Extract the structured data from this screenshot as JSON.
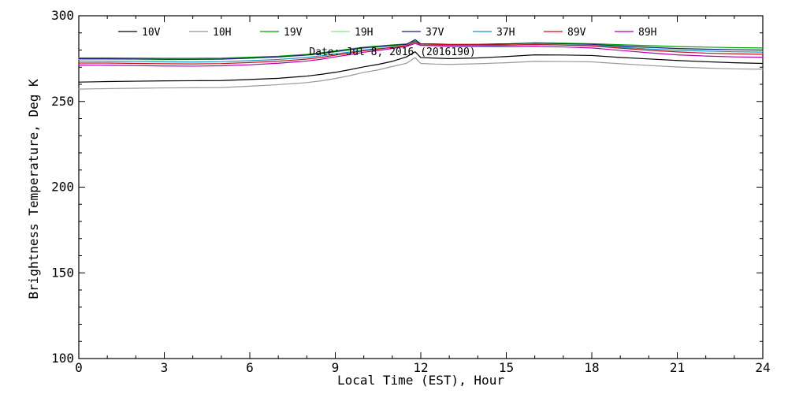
{
  "chart_data": {
    "type": "line",
    "title": "",
    "xlabel": "Local Time (EST), Hour",
    "ylabel": "Brightness Temperature, Deg K",
    "xlim": [
      0,
      24
    ],
    "ylim": [
      100,
      300
    ],
    "xticks": [
      0,
      3,
      6,
      9,
      12,
      15,
      18,
      21,
      24
    ],
    "yticks": [
      100,
      150,
      200,
      250,
      300
    ],
    "grid": false,
    "legend_position": "top",
    "annotation": "Date: Jul  8, 2016  (2016190)",
    "x": [
      0,
      1,
      2,
      3,
      4,
      5,
      6,
      7,
      8,
      8.5,
      9,
      9.5,
      10,
      10.5,
      11,
      11.5,
      11.8,
      12,
      12.5,
      13,
      14,
      15,
      16,
      17,
      18,
      19,
      20,
      21,
      22,
      23,
      24
    ],
    "series": [
      {
        "name": "10V",
        "color": "#000000",
        "values": [
          261.3,
          261.6,
          261.8,
          262.0,
          262.1,
          262.2,
          262.8,
          263.5,
          264.8,
          265.8,
          267.0,
          268.5,
          270.2,
          271.6,
          273.4,
          276.0,
          279.0,
          275.6,
          275.3,
          275.0,
          275.4,
          276.2,
          277.2,
          277.1,
          276.8,
          275.7,
          274.8,
          273.9,
          273.2,
          272.6,
          272.2
        ]
      },
      {
        "name": "10H",
        "color": "#999999",
        "values": [
          257.2,
          257.5,
          257.7,
          257.9,
          258.0,
          258.1,
          258.9,
          259.8,
          261.0,
          262.0,
          263.4,
          265.0,
          267.0,
          268.4,
          270.4,
          272.3,
          275.6,
          272.2,
          271.8,
          271.6,
          272.0,
          272.6,
          273.4,
          273.3,
          273.1,
          272.0,
          271.0,
          270.1,
          269.5,
          269.0,
          268.8
        ]
      },
      {
        "name": "19V",
        "color": "#00a000",
        "values": [
          275.4,
          275.4,
          275.3,
          275.2,
          275.2,
          275.3,
          275.8,
          276.4,
          277.5,
          278.4,
          279.5,
          280.6,
          281.7,
          282.3,
          283.0,
          283.6,
          285.3,
          283.5,
          283.4,
          283.2,
          283.3,
          283.6,
          284.2,
          284.0,
          283.7,
          283.1,
          282.6,
          282.0,
          281.7,
          281.4,
          281.2
        ]
      },
      {
        "name": "19H",
        "color": "#80e880",
        "values": [
          274.6,
          274.6,
          274.4,
          274.3,
          274.4,
          274.6,
          275.2,
          275.8,
          276.9,
          277.7,
          278.8,
          279.9,
          281.0,
          281.6,
          282.2,
          282.9,
          284.6,
          282.8,
          282.6,
          282.4,
          282.4,
          282.7,
          283.2,
          283.1,
          282.7,
          282.0,
          281.4,
          280.8,
          280.4,
          280.1,
          279.9
        ]
      },
      {
        "name": "37V",
        "color": "#1c1c80",
        "values": [
          274.9,
          274.9,
          274.8,
          274.6,
          274.6,
          274.7,
          275.3,
          276.0,
          277.1,
          278.0,
          279.1,
          280.2,
          281.3,
          282.0,
          282.7,
          283.3,
          286.1,
          283.7,
          283.6,
          283.3,
          283.3,
          283.6,
          284.0,
          283.7,
          283.3,
          282.4,
          281.6,
          280.9,
          280.5,
          280.2,
          280.0
        ]
      },
      {
        "name": "37H",
        "color": "#1496c8",
        "values": [
          273.6,
          273.5,
          273.3,
          273.1,
          273.0,
          273.2,
          273.8,
          274.5,
          275.7,
          276.6,
          277.7,
          278.8,
          280.0,
          280.8,
          281.5,
          282.3,
          285.0,
          282.9,
          282.8,
          282.5,
          282.5,
          282.8,
          283.3,
          283.0,
          282.6,
          281.6,
          280.6,
          279.9,
          279.4,
          279.0,
          278.8
        ]
      },
      {
        "name": "89V",
        "color": "#d01010",
        "values": [
          272.4,
          272.4,
          272.2,
          272.0,
          271.9,
          272.1,
          272.7,
          273.5,
          274.7,
          275.7,
          277.0,
          278.2,
          279.6,
          280.5,
          281.6,
          282.6,
          284.7,
          283.5,
          283.3,
          283.1,
          283.1,
          283.0,
          283.2,
          282.9,
          282.4,
          281.1,
          279.9,
          278.9,
          278.2,
          277.8,
          277.6
        ]
      },
      {
        "name": "89H",
        "color": "#b000b0",
        "values": [
          271.2,
          271.1,
          270.9,
          270.7,
          270.6,
          270.8,
          271.4,
          272.3,
          273.6,
          274.6,
          276.0,
          277.3,
          278.7,
          279.7,
          280.9,
          282.1,
          283.8,
          282.7,
          282.5,
          282.2,
          282.1,
          282.0,
          282.2,
          281.8,
          281.2,
          279.8,
          278.4,
          277.2,
          276.5,
          276.0,
          275.8
        ]
      }
    ]
  }
}
